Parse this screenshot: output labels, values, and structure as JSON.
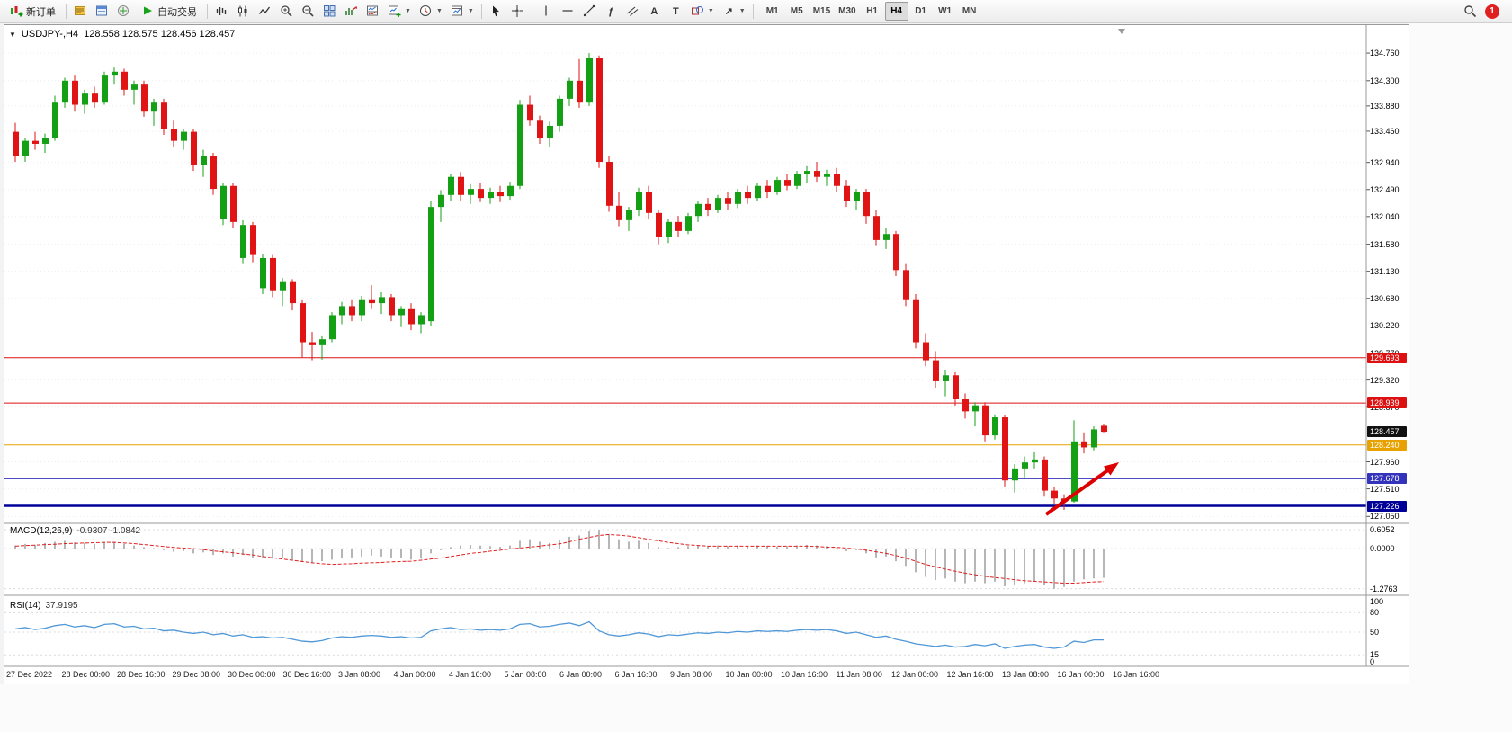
{
  "toolbar": {
    "new_order": {
      "label": "新订单"
    },
    "autotrading": {
      "label": "自动交易"
    },
    "timeframes": [
      {
        "label": "M1",
        "active": false
      },
      {
        "label": "M5",
        "active": false
      },
      {
        "label": "M15",
        "active": false
      },
      {
        "label": "M30",
        "active": false
      },
      {
        "label": "H1",
        "active": false
      },
      {
        "label": "H4",
        "active": true
      },
      {
        "label": "D1",
        "active": false
      },
      {
        "label": "W1",
        "active": false
      },
      {
        "label": "MN",
        "active": false
      }
    ],
    "notification_count": "1"
  },
  "chart": {
    "title": "USDJPY-,H4",
    "ohlc": "128.558 128.575 128.456 128.457"
  },
  "chart_data": {
    "type": "candlestick",
    "symbol": "USDJPY-",
    "timeframe": "H4",
    "colors": {
      "bull": "#14a014",
      "bear": "#e01414"
    },
    "price_range": [
      126.98,
      135.18
    ],
    "price_axis_ticks": [
      "134.760",
      "134.300",
      "133.880",
      "133.460",
      "132.940",
      "132.490",
      "132.040",
      "131.580",
      "131.130",
      "130.680",
      "130.220",
      "129.770",
      "129.320",
      "128.870",
      "127.960",
      "127.510",
      "127.050"
    ],
    "hlines": [
      {
        "value": 129.693,
        "label": "129.693",
        "color": "#dd1111",
        "width": 1
      },
      {
        "value": 128.939,
        "label": "128.939",
        "color": "#dd1111",
        "width": 1
      },
      {
        "value": 128.24,
        "label": "128.240",
        "color": "#e8a200",
        "width": 1
      },
      {
        "value": 127.678,
        "label": "127.678",
        "color": "#3333bb",
        "width": 1
      },
      {
        "value": 127.226,
        "label": "127.226",
        "color": "#000099",
        "width": 2.5
      }
    ],
    "current_price": {
      "value": 128.457,
      "label": "128.457",
      "color": "#111111"
    },
    "annotation_arrow": {
      "color": "#dd0000"
    },
    "candles": [
      [
        133.45,
        133.6,
        132.95,
        133.05
      ],
      [
        133.05,
        133.35,
        132.95,
        133.3
      ],
      [
        133.3,
        133.45,
        133.15,
        133.25
      ],
      [
        133.25,
        133.42,
        133.1,
        133.35
      ],
      [
        133.35,
        134.05,
        133.3,
        133.95
      ],
      [
        133.95,
        134.35,
        133.85,
        134.3
      ],
      [
        134.3,
        134.4,
        133.8,
        133.9
      ],
      [
        133.9,
        134.15,
        133.75,
        134.1
      ],
      [
        134.1,
        134.2,
        133.85,
        133.95
      ],
      [
        133.95,
        134.45,
        133.9,
        134.4
      ],
      [
        134.4,
        134.52,
        134.25,
        134.45
      ],
      [
        134.45,
        134.5,
        134.05,
        134.15
      ],
      [
        134.15,
        134.3,
        133.9,
        134.25
      ],
      [
        134.25,
        134.3,
        133.7,
        133.8
      ],
      [
        133.8,
        134.0,
        133.55,
        133.95
      ],
      [
        133.95,
        134.0,
        133.4,
        133.5
      ],
      [
        133.5,
        133.65,
        133.2,
        133.3
      ],
      [
        133.3,
        133.5,
        133.15,
        133.45
      ],
      [
        133.45,
        133.5,
        132.8,
        132.9
      ],
      [
        132.9,
        133.15,
        132.7,
        133.05
      ],
      [
        133.05,
        133.1,
        132.4,
        132.5
      ],
      [
        132.0,
        132.6,
        131.9,
        132.55
      ],
      [
        132.55,
        132.6,
        131.85,
        131.95
      ],
      [
        131.35,
        131.98,
        131.25,
        131.9
      ],
      [
        131.9,
        131.95,
        131.28,
        131.4
      ],
      [
        130.85,
        131.42,
        130.75,
        131.35
      ],
      [
        131.35,
        131.4,
        130.7,
        130.8
      ],
      [
        130.8,
        131.02,
        130.55,
        130.95
      ],
      [
        130.95,
        131.0,
        130.48,
        130.6
      ],
      [
        130.6,
        130.65,
        129.7,
        129.95
      ],
      [
        129.95,
        130.12,
        129.65,
        129.9
      ],
      [
        129.9,
        130.05,
        129.66,
        130.0
      ],
      [
        130.0,
        130.45,
        129.95,
        130.4
      ],
      [
        130.4,
        130.62,
        130.25,
        130.55
      ],
      [
        130.55,
        130.65,
        130.3,
        130.4
      ],
      [
        130.4,
        130.72,
        130.3,
        130.65
      ],
      [
        130.65,
        130.9,
        130.5,
        130.6
      ],
      [
        130.6,
        130.78,
        130.42,
        130.7
      ],
      [
        130.7,
        130.75,
        130.3,
        130.4
      ],
      [
        130.4,
        130.55,
        130.2,
        130.5
      ],
      [
        130.5,
        130.6,
        130.15,
        130.25
      ],
      [
        130.25,
        130.45,
        130.1,
        130.4
      ],
      [
        130.3,
        132.3,
        130.22,
        132.2
      ],
      [
        132.2,
        132.48,
        131.95,
        132.4
      ],
      [
        132.4,
        132.75,
        132.3,
        132.7
      ],
      [
        132.7,
        132.78,
        132.3,
        132.4
      ],
      [
        132.4,
        132.58,
        132.25,
        132.5
      ],
      [
        132.5,
        132.6,
        132.28,
        132.35
      ],
      [
        132.35,
        132.52,
        132.25,
        132.45
      ],
      [
        132.45,
        132.55,
        132.28,
        132.38
      ],
      [
        132.38,
        132.62,
        132.32,
        132.55
      ],
      [
        132.55,
        133.98,
        132.5,
        133.9
      ],
      [
        133.9,
        134.05,
        133.55,
        133.65
      ],
      [
        133.65,
        133.72,
        133.25,
        133.35
      ],
      [
        133.35,
        133.62,
        133.2,
        133.55
      ],
      [
        133.55,
        134.05,
        133.45,
        134.0
      ],
      [
        134.0,
        134.35,
        133.88,
        134.3
      ],
      [
        134.3,
        134.66,
        133.85,
        133.95
      ],
      [
        133.95,
        134.76,
        133.88,
        134.68
      ],
      [
        134.68,
        134.72,
        132.85,
        132.95
      ],
      [
        132.95,
        133.05,
        132.12,
        132.22
      ],
      [
        132.22,
        132.45,
        131.88,
        131.98
      ],
      [
        131.98,
        132.2,
        131.8,
        132.15
      ],
      [
        132.15,
        132.52,
        132.05,
        132.45
      ],
      [
        132.45,
        132.55,
        132.0,
        132.1
      ],
      [
        132.1,
        132.15,
        131.58,
        131.7
      ],
      [
        131.7,
        132.0,
        131.6,
        131.95
      ],
      [
        131.95,
        132.05,
        131.7,
        131.8
      ],
      [
        131.8,
        132.1,
        131.75,
        132.05
      ],
      [
        132.05,
        132.3,
        131.95,
        132.25
      ],
      [
        132.25,
        132.35,
        132.05,
        132.15
      ],
      [
        132.15,
        132.4,
        132.1,
        132.35
      ],
      [
        132.35,
        132.45,
        132.15,
        132.25
      ],
      [
        132.25,
        132.5,
        132.18,
        132.45
      ],
      [
        132.45,
        132.55,
        132.25,
        132.35
      ],
      [
        132.35,
        132.6,
        132.3,
        132.55
      ],
      [
        132.55,
        132.65,
        132.35,
        132.45
      ],
      [
        132.45,
        132.7,
        132.4,
        132.65
      ],
      [
        132.65,
        132.75,
        132.48,
        132.55
      ],
      [
        132.55,
        132.8,
        132.5,
        132.75
      ],
      [
        132.75,
        132.88,
        132.6,
        132.8
      ],
      [
        132.8,
        132.95,
        132.62,
        132.7
      ],
      [
        132.7,
        132.82,
        132.55,
        132.75
      ],
      [
        132.75,
        132.85,
        132.45,
        132.55
      ],
      [
        132.55,
        132.65,
        132.2,
        132.3
      ],
      [
        132.3,
        132.5,
        132.15,
        132.45
      ],
      [
        132.45,
        132.5,
        131.92,
        132.05
      ],
      [
        132.05,
        132.15,
        131.55,
        131.65
      ],
      [
        131.65,
        131.85,
        131.5,
        131.75
      ],
      [
        131.75,
        131.8,
        131.05,
        131.15
      ],
      [
        131.15,
        131.25,
        130.55,
        130.65
      ],
      [
        130.65,
        130.75,
        129.85,
        129.95
      ],
      [
        129.95,
        130.1,
        129.55,
        129.65
      ],
      [
        129.65,
        129.8,
        129.18,
        129.3
      ],
      [
        129.3,
        129.48,
        129.05,
        129.4
      ],
      [
        129.4,
        129.45,
        128.88,
        129.0
      ],
      [
        129.0,
        129.1,
        128.68,
        128.8
      ],
      [
        128.8,
        128.95,
        128.55,
        128.9
      ],
      [
        128.9,
        128.95,
        128.3,
        128.4
      ],
      [
        128.4,
        128.75,
        128.33,
        128.7
      ],
      [
        128.7,
        128.74,
        127.55,
        127.65
      ],
      [
        127.65,
        127.92,
        127.45,
        127.85
      ],
      [
        127.85,
        128.05,
        127.7,
        127.95
      ],
      [
        127.95,
        128.12,
        127.85,
        128.0
      ],
      [
        128.0,
        128.05,
        127.38,
        127.48
      ],
      [
        127.48,
        127.55,
        127.25,
        127.35
      ],
      [
        127.35,
        127.42,
        127.16,
        127.3
      ],
      [
        127.3,
        128.65,
        127.28,
        128.3
      ],
      [
        128.3,
        128.45,
        128.1,
        128.2
      ],
      [
        128.2,
        128.55,
        128.15,
        128.5
      ],
      [
        128.56,
        128.58,
        128.45,
        128.46
      ]
    ],
    "macd": {
      "label": "MACD(12,26,9)",
      "values_label": "-0.9307 -1.0842",
      "axis_ticks": [
        "0.6052",
        "0.0000",
        "-1.2763"
      ],
      "range": [
        -1.4,
        0.72
      ],
      "histogram": [
        0.1,
        0.15,
        0.12,
        0.18,
        0.22,
        0.25,
        0.2,
        0.18,
        0.15,
        0.2,
        0.22,
        0.15,
        0.1,
        0.05,
        0.02,
        -0.05,
        -0.1,
        -0.08,
        -0.15,
        -0.12,
        -0.2,
        -0.15,
        -0.25,
        -0.2,
        -0.3,
        -0.28,
        -0.32,
        -0.3,
        -0.35,
        -0.42,
        -0.45,
        -0.4,
        -0.35,
        -0.3,
        -0.28,
        -0.25,
        -0.22,
        -0.25,
        -0.28,
        -0.3,
        -0.35,
        -0.32,
        -0.15,
        -0.05,
        0.05,
        0.1,
        0.12,
        0.1,
        0.08,
        0.06,
        0.1,
        0.25,
        0.3,
        0.22,
        0.18,
        0.28,
        0.38,
        0.42,
        0.55,
        0.6,
        0.45,
        0.3,
        0.22,
        0.25,
        0.18,
        0.05,
        0.02,
        0.05,
        0.08,
        0.1,
        0.08,
        0.1,
        0.08,
        0.1,
        0.08,
        0.1,
        0.08,
        0.06,
        0.08,
        0.1,
        0.12,
        0.1,
        0.08,
        0.02,
        -0.08,
        -0.05,
        -0.15,
        -0.28,
        -0.25,
        -0.4,
        -0.55,
        -0.75,
        -0.9,
        -1.0,
        -0.95,
        -1.05,
        -1.1,
        -1.05,
        -1.1,
        -1.05,
        -1.2,
        -1.15,
        -1.1,
        -1.05,
        -1.15,
        -1.28,
        -1.22,
        -1.05,
        -0.98,
        -0.95,
        -0.93
      ],
      "signal": [
        0.08,
        0.1,
        0.11,
        0.13,
        0.14,
        0.16,
        0.17,
        0.18,
        0.19,
        0.2,
        0.2,
        0.18,
        0.16,
        0.13,
        0.1,
        0.07,
        0.04,
        0.02,
        0.0,
        -0.03,
        -0.07,
        -0.1,
        -0.13,
        -0.17,
        -0.2,
        -0.25,
        -0.29,
        -0.33,
        -0.37,
        -0.41,
        -0.45,
        -0.48,
        -0.5,
        -0.49,
        -0.48,
        -0.46,
        -0.45,
        -0.44,
        -0.42,
        -0.41,
        -0.4,
        -0.37,
        -0.33,
        -0.3,
        -0.25,
        -0.2,
        -0.15,
        -0.12,
        -0.08,
        -0.05,
        -0.01,
        0.02,
        0.05,
        0.08,
        0.12,
        0.15,
        0.22,
        0.3,
        0.36,
        0.42,
        0.45,
        0.43,
        0.4,
        0.35,
        0.3,
        0.25,
        0.2,
        0.16,
        0.12,
        0.1,
        0.08,
        0.08,
        0.08,
        0.08,
        0.08,
        0.08,
        0.08,
        0.08,
        0.08,
        0.08,
        0.08,
        0.07,
        0.05,
        0.04,
        0.02,
        -0.01,
        -0.05,
        -0.1,
        -0.15,
        -0.22,
        -0.3,
        -0.4,
        -0.5,
        -0.58,
        -0.65,
        -0.72,
        -0.78,
        -0.83,
        -0.88,
        -0.92,
        -0.95,
        -0.99,
        -1.02,
        -1.04,
        -1.06,
        -1.08,
        -1.1,
        -1.1,
        -1.08,
        -1.06,
        -1.05
      ]
    },
    "rsi": {
      "label": "RSI(14)",
      "value_label": "37.9195",
      "axis_ticks": [
        "100",
        "80",
        "50",
        "15",
        "0"
      ],
      "levels": [
        80,
        50,
        15
      ],
      "range": [
        0,
        100
      ],
      "color": "#4f97d7",
      "values": [
        55,
        57,
        54,
        56,
        60,
        62,
        58,
        60,
        57,
        62,
        63,
        58,
        59,
        55,
        56,
        52,
        53,
        50,
        48,
        50,
        46,
        48,
        44,
        46,
        42,
        43,
        41,
        42,
        39,
        36,
        35,
        37,
        41,
        43,
        42,
        44,
        45,
        44,
        42,
        43,
        41,
        42,
        52,
        55,
        57,
        54,
        55,
        53,
        54,
        53,
        55,
        62,
        63,
        58,
        59,
        62,
        64,
        60,
        66,
        52,
        46,
        44,
        46,
        49,
        47,
        43,
        46,
        45,
        47,
        49,
        48,
        50,
        49,
        51,
        50,
        52,
        51,
        52,
        51,
        53,
        54,
        53,
        54,
        52,
        48,
        50,
        46,
        42,
        44,
        39,
        36,
        32,
        30,
        28,
        30,
        27,
        28,
        31,
        29,
        32,
        25,
        28,
        30,
        31,
        27,
        25,
        27,
        36,
        34,
        38,
        38
      ]
    },
    "time_axis": [
      "27 Dec 2022",
      "28 Dec 00:00",
      "28 Dec 16:00",
      "29 Dec 08:00",
      "30 Dec 00:00",
      "30 Dec 16:00",
      "3 Jan 08:00",
      "4 Jan 00:00",
      "4 Jan 16:00",
      "5 Jan 08:00",
      "6 Jan 00:00",
      "6 Jan 16:00",
      "9 Jan 08:00",
      "10 Jan 00:00",
      "10 Jan 16:00",
      "11 Jan 08:00",
      "12 Jan 00:00",
      "12 Jan 16:00",
      "13 Jan 08:00",
      "16 Jan 00:00",
      "16 Jan 16:00"
    ]
  }
}
